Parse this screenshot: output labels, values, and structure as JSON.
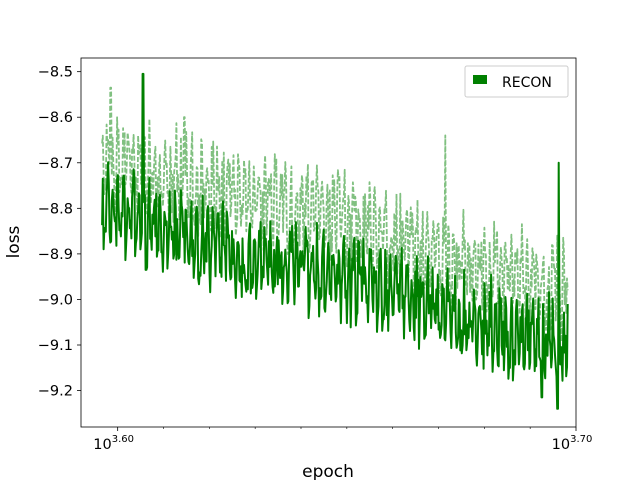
{
  "chart_data": {
    "type": "line",
    "xlabel": "epoch",
    "ylabel": "loss",
    "xscale": "log",
    "xlim": [
      3.592,
      3.7
    ],
    "ylim": [
      -9.28,
      -8.47
    ],
    "grid": false,
    "legend": {
      "position": "top-right",
      "entries": [
        "RECON"
      ]
    },
    "x_ticks": [
      {
        "base": "10",
        "exp": "3.60",
        "value": 3.6
      },
      {
        "base": "10",
        "exp": "3.70",
        "value": 3.7
      }
    ],
    "y_ticks": [
      {
        "label": "−8.5",
        "value": -8.5
      },
      {
        "label": "−8.6",
        "value": -8.6
      },
      {
        "label": "−8.7",
        "value": -8.7
      },
      {
        "label": "−8.8",
        "value": -8.8
      },
      {
        "label": "−8.9",
        "value": -8.9
      },
      {
        "label": "−9.0",
        "value": -9.0
      },
      {
        "label": "−9.1",
        "value": -9.1
      },
      {
        "label": "−9.2",
        "value": -9.2
      }
    ],
    "series": [
      {
        "name": "RECON",
        "color": "#008000",
        "style": "solid",
        "x_log_range": [
          3.5966,
          3.6982
        ],
        "trend": [
          -8.8,
          -8.84,
          -8.9,
          -8.93,
          -8.97,
          -9.02,
          -9.06,
          -9.1
        ],
        "amplitude": 0.07,
        "spikes": [
          {
            "x_log": 3.6055,
            "y": -8.505
          },
          {
            "x_log": 3.6925,
            "y": -9.215
          },
          {
            "x_log": 3.6962,
            "y": -8.7
          },
          {
            "x_log": 3.696,
            "y": -9.24
          }
        ],
        "end_value": -9.01
      },
      {
        "name": "",
        "color": "#80c080",
        "style": "dashed",
        "x_log_range": [
          3.5966,
          3.6982
        ],
        "trend": [
          -8.7,
          -8.72,
          -8.78,
          -8.8,
          -8.85,
          -8.9,
          -8.94,
          -8.98
        ],
        "amplitude": 0.075,
        "spikes": [
          {
            "x_log": 3.5985,
            "y": -8.535
          },
          {
            "x_log": 3.6145,
            "y": -8.6
          },
          {
            "x_log": 3.6715,
            "y": -8.64
          }
        ],
        "end_value": -8.98
      }
    ]
  }
}
